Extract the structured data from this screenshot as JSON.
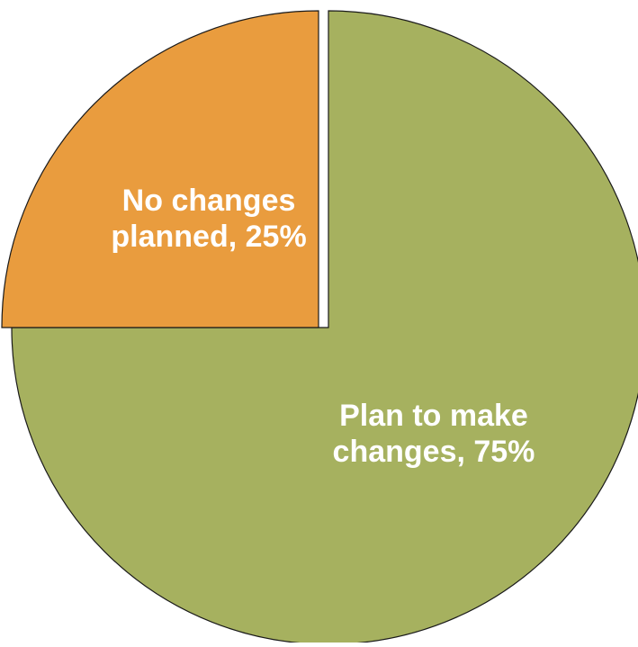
{
  "chart_data": {
    "type": "pie",
    "slices": [
      {
        "name": "Plan to make changes",
        "value": 75,
        "color": "#A6B15F",
        "label_lines": [
          "Plan to make",
          "changes, 75%"
        ]
      },
      {
        "name": "No changes planned",
        "value": 25,
        "color": "#E99C3E",
        "label_lines": [
          "No changes",
          "planned, 25%"
        ]
      }
    ],
    "start_angle_deg": 0,
    "direction": "clockwise",
    "exploded": "No changes planned",
    "outline_color": "#1a1a1a"
  }
}
